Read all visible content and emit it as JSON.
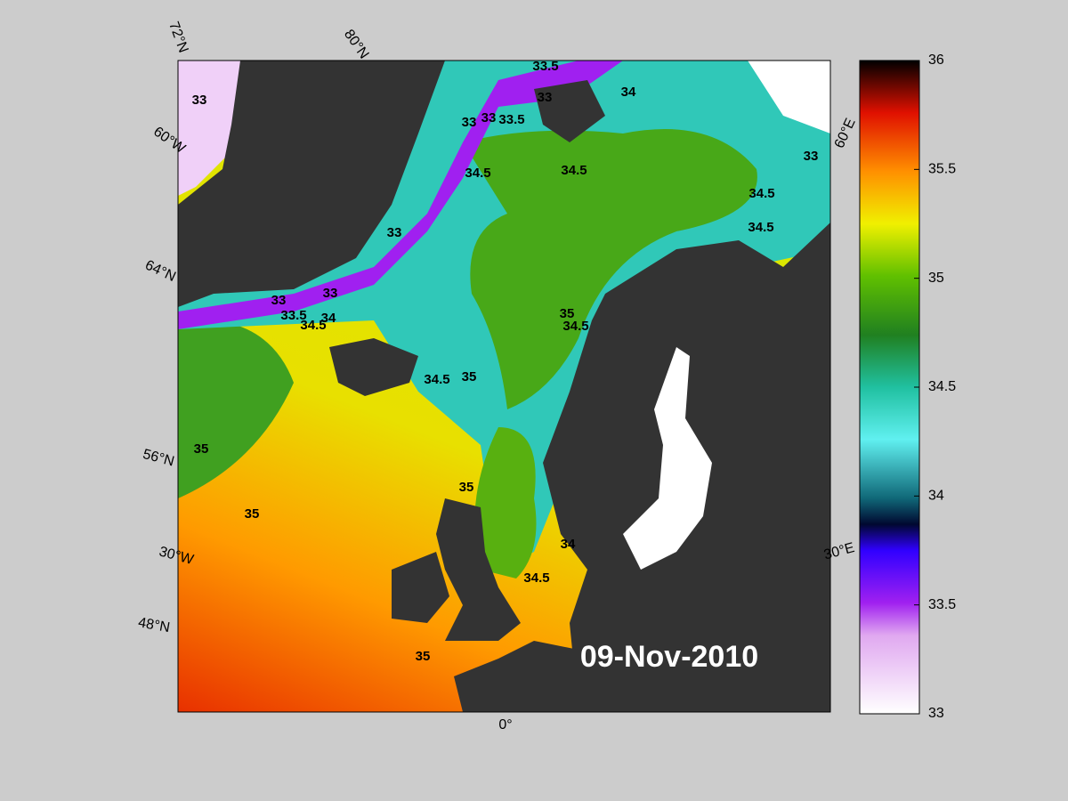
{
  "date": "09-Nov-2010",
  "graticule_labels": [
    "72°N",
    "80°N",
    "60°W",
    "64°N",
    "56°N",
    "30°W",
    "48°N",
    "0°",
    "30°E",
    "60°E"
  ],
  "contour_labels": [
    33,
    33.5,
    33,
    33.5,
    33,
    33,
    34,
    34.5,
    34.5,
    33,
    34.5,
    34.5,
    33,
    33,
    33,
    33.5,
    34,
    34.5,
    35,
    34.5,
    34.5,
    35,
    35,
    35,
    35,
    34,
    34.5,
    35
  ],
  "colorbar": {
    "lim": [
      33,
      36
    ],
    "ticks": [
      33,
      33.5,
      34,
      34.5,
      35,
      35.5,
      36
    ]
  }
}
